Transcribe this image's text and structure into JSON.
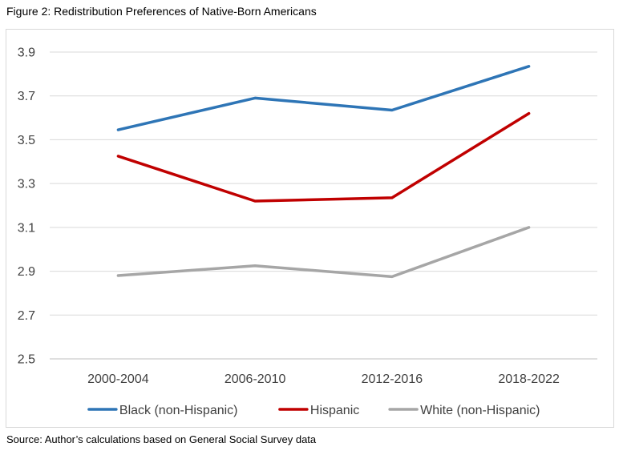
{
  "figure_title": "Figure 2: Redistribution Preferences of Native-Born Americans",
  "source_note": "Source: Author’s calculations based on General Social Survey data",
  "chart_data": {
    "type": "line",
    "title": "",
    "xlabel": "",
    "ylabel": "",
    "categories": [
      "2000-2004",
      "2006-2010",
      "2012-2016",
      "2018-2022"
    ],
    "ylim": [
      2.5,
      3.9
    ],
    "yticks": [
      2.5,
      2.7,
      2.9,
      3.1,
      3.3,
      3.5,
      3.7,
      3.9
    ],
    "ytick_labels": [
      "2.5",
      "2.7",
      "2.9",
      "3.1",
      "3.3",
      "3.5",
      "3.7",
      "3.9"
    ],
    "grid": true,
    "legend_position": "bottom",
    "series": [
      {
        "name": "Black (non-Hispanic)",
        "color": "#2e75b6",
        "values": [
          3.545,
          3.69,
          3.635,
          3.835
        ]
      },
      {
        "name": "Hispanic",
        "color": "#c00000",
        "values": [
          3.425,
          3.22,
          3.235,
          3.62
        ]
      },
      {
        "name": "White (non-Hispanic)",
        "color": "#a6a6a6",
        "values": [
          2.88,
          2.925,
          2.875,
          3.1
        ]
      }
    ]
  }
}
